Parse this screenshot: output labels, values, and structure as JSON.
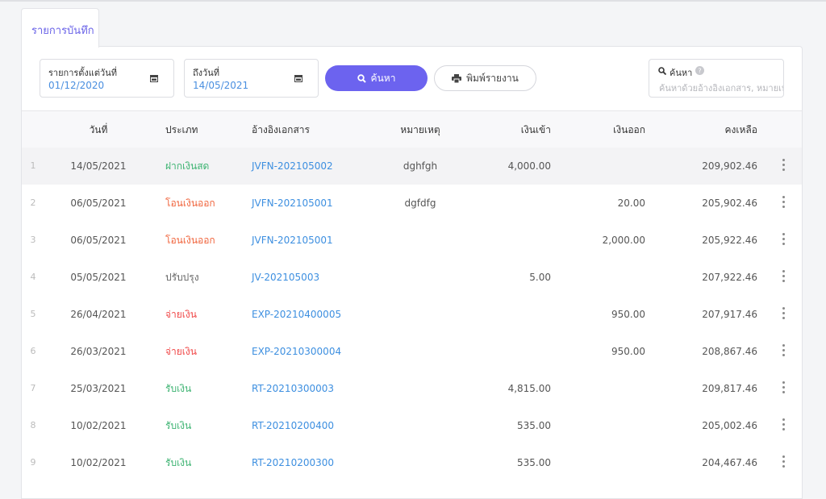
{
  "tab": {
    "title": "รายการบันทึก"
  },
  "filters": {
    "from_label": "รายการตั้งแต่วันที่",
    "from_value": "01/12/2020",
    "to_label": "ถึงวันที่",
    "to_value": "14/05/2021",
    "search_button": "ค้นหา",
    "print_button": "พิมพ์รายงาน",
    "search_label": "ค้นหา",
    "search_placeholder": "ค้นหาด้วยอ้างอิงเอกสาร, หมายเหตุ"
  },
  "table": {
    "columns": [
      "วันที่",
      "ประเภท",
      "อ้างอิงเอกสาร",
      "หมายเหตุ",
      "เงินเข้า",
      "เงินออก",
      "คงเหลือ"
    ],
    "rows": [
      {
        "no": "1",
        "date": "14/05/2021",
        "type": "ฝากเงินสด",
        "type_color": "#3cb371",
        "ref": "JVFN-202105002",
        "note": "dghfgh",
        "in": "4,000.00",
        "balance": "209,902.46"
      },
      {
        "no": "2",
        "date": "06/05/2021",
        "type": "โอนเงินออก",
        "type_color": "#f0643c",
        "ref": "JVFN-202105001",
        "note": "dgfdfg",
        "out": "20.00",
        "balance": "205,902.46"
      },
      {
        "no": "3",
        "date": "06/05/2021",
        "type": "โอนเงินออก",
        "type_color": "#f0643c",
        "ref": "JVFN-202105001",
        "out": "2,000.00",
        "balance": "205,922.46"
      },
      {
        "no": "4",
        "date": "05/05/2021",
        "type": "ปรับปรุง",
        "type_color": "#666666",
        "ref": "JV-202105003",
        "in": "5.00",
        "balance": "207,922.46"
      },
      {
        "no": "5",
        "date": "26/04/2021",
        "type": "จ่ายเงิน",
        "type_color": "#f04646",
        "ref": "EXP-20210400005",
        "out": "950.00",
        "balance": "207,917.46"
      },
      {
        "no": "6",
        "date": "26/03/2021",
        "type": "จ่ายเงิน",
        "type_color": "#f04646",
        "ref": "EXP-20210300004",
        "out": "950.00",
        "balance": "208,867.46"
      },
      {
        "no": "7",
        "date": "25/03/2021",
        "type": "รับเงิน",
        "type_color": "#3cb371",
        "ref": "RT-20210300003",
        "in": "4,815.00",
        "balance": "209,817.46"
      },
      {
        "no": "8",
        "date": "10/02/2021",
        "type": "รับเงิน",
        "type_color": "#3cb371",
        "ref": "RT-20210200400",
        "in": "535.00",
        "balance": "205,002.46"
      },
      {
        "no": "9",
        "date": "10/02/2021",
        "type": "รับเงิน",
        "type_color": "#3cb371",
        "ref": "RT-20210200300",
        "in": "535.00",
        "balance": "204,467.46"
      }
    ]
  }
}
